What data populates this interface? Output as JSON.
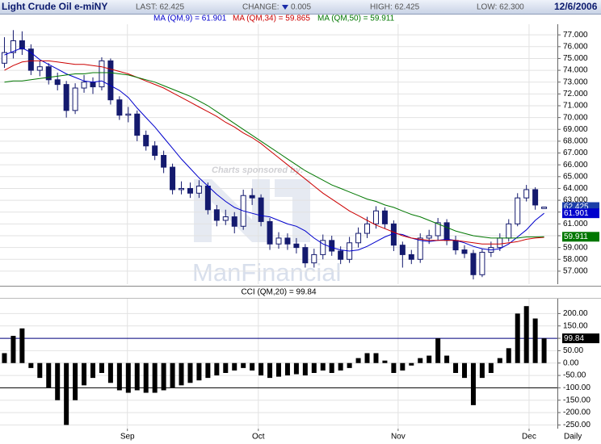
{
  "chart_data": [
    {
      "type": "candlestick",
      "title": "Light Crude Oil e-miNY",
      "stats": [
        "LAST: 62.425",
        "HIGH: 62.425",
        "LOW: 62.300"
      ],
      "change_label": "CHANGE:",
      "change_value": "0.005",
      "date": "12/6/2006",
      "watermark": [
        "Charts sponsored by:",
        "ManFinancial"
      ],
      "open": [
        74.6,
        75.5,
        76.5,
        75.8,
        74.0,
        74.3,
        73.2,
        72.8,
        70.6,
        72.5,
        73.0,
        72.6,
        74.8,
        71.5,
        70.2,
        70.3,
        68.5,
        67.6,
        66.8,
        65.8,
        63.9,
        64.0,
        63.6,
        64.2,
        62.2,
        61.3,
        61.6,
        60.8,
        63.4,
        63.2,
        61.2,
        59.3,
        59.8,
        59.3,
        59.0,
        57.7,
        58.4,
        59.6,
        58.7,
        58.0,
        59.4,
        60.2,
        61.0,
        62.1,
        61.0,
        59.2,
        58.4,
        58.0,
        59.8,
        60.0,
        61.1,
        59.6,
        58.8,
        58.5,
        56.7,
        58.6,
        59.0,
        59.8,
        61.0,
        63.2,
        63.9,
        62.3
      ],
      "high": [
        76.8,
        77.4,
        77.3,
        76.2,
        74.8,
        74.6,
        73.8,
        73.1,
        72.9,
        73.6,
        73.4,
        75.1,
        75.0,
        71.8,
        70.9,
        70.6,
        68.9,
        68.0,
        67.2,
        66.1,
        64.6,
        64.5,
        64.7,
        64.5,
        62.6,
        62.2,
        62.0,
        63.9,
        64.0,
        63.5,
        61.5,
        60.3,
        60.2,
        59.8,
        59.3,
        58.9,
        60.1,
        60.0,
        59.1,
        59.9,
        60.7,
        61.6,
        62.5,
        62.4,
        61.3,
        59.5,
        58.8,
        60.2,
        60.5,
        61.5,
        61.4,
        60.0,
        59.2,
        58.8,
        58.9,
        59.5,
        60.2,
        61.4,
        63.6,
        64.3,
        64.1,
        62.425
      ],
      "low": [
        74.2,
        75.0,
        75.3,
        73.6,
        73.5,
        72.8,
        72.3,
        70.0,
        70.3,
        72.1,
        72.0,
        72.3,
        71.1,
        69.8,
        69.6,
        68.0,
        67.2,
        66.4,
        65.3,
        63.5,
        63.5,
        63.2,
        63.2,
        61.8,
        60.8,
        60.9,
        60.2,
        60.5,
        62.6,
        60.8,
        58.8,
        58.9,
        58.8,
        58.5,
        57.3,
        57.3,
        58.0,
        58.3,
        57.6,
        57.7,
        59.0,
        59.8,
        60.6,
        60.6,
        58.7,
        57.3,
        57.6,
        57.7,
        59.3,
        59.6,
        59.2,
        58.4,
        58.1,
        56.3,
        56.5,
        58.2,
        58.7,
        59.5,
        60.8,
        62.9,
        62.2,
        62.3
      ],
      "close": [
        75.5,
        76.5,
        75.8,
        74.0,
        74.3,
        73.2,
        72.8,
        70.6,
        72.5,
        73.0,
        72.6,
        74.8,
        71.5,
        70.2,
        70.3,
        68.5,
        67.6,
        66.8,
        65.8,
        63.9,
        64.0,
        63.6,
        64.2,
        62.2,
        61.3,
        61.6,
        60.8,
        63.4,
        63.2,
        61.2,
        59.3,
        59.8,
        59.3,
        59.0,
        57.7,
        58.4,
        59.6,
        58.7,
        58.0,
        59.4,
        60.2,
        61.0,
        62.1,
        61.0,
        59.2,
        58.4,
        58.0,
        59.8,
        60.0,
        61.1,
        59.6,
        58.8,
        58.5,
        56.7,
        58.6,
        59.0,
        59.8,
        61.0,
        63.2,
        63.9,
        62.6,
        62.425
      ],
      "color": "#141a6e",
      "last_label": "62.425",
      "series": [
        {
          "name": "MA (QM,9) = 61.901",
          "color": "#0000cc",
          "last_label": "61.901",
          "values": [
            75.3,
            75.6,
            75.9,
            75.5,
            74.9,
            74.5,
            74.1,
            73.7,
            73.4,
            73.1,
            73.0,
            73.1,
            72.7,
            72.3,
            71.7,
            70.8,
            70.0,
            69.2,
            68.3,
            67.4,
            66.5,
            65.7,
            64.9,
            64.2,
            63.5,
            62.9,
            62.4,
            62.1,
            61.9,
            61.7,
            61.6,
            61.3,
            61.0,
            60.8,
            60.4,
            59.8,
            59.3,
            59.0,
            58.8,
            58.7,
            58.8,
            59.1,
            59.5,
            59.9,
            60.2,
            60.1,
            59.8,
            59.6,
            59.5,
            59.6,
            59.7,
            59.6,
            59.4,
            59.1,
            58.9,
            58.8,
            58.9,
            59.3,
            59.9,
            60.5,
            61.3,
            61.901
          ]
        },
        {
          "name": "MA (QM,34) = 59.865",
          "color": "#cc0000",
          "values": [
            74.0,
            74.4,
            74.7,
            74.8,
            74.8,
            74.8,
            74.7,
            74.6,
            74.5,
            74.5,
            74.4,
            74.3,
            74.1,
            73.9,
            73.7,
            73.4,
            73.1,
            72.8,
            72.5,
            72.1,
            71.7,
            71.3,
            70.9,
            70.5,
            70.1,
            69.6,
            69.2,
            68.7,
            68.3,
            67.8,
            67.2,
            66.6,
            66.0,
            65.4,
            64.8,
            64.2,
            63.6,
            63.1,
            62.6,
            62.1,
            61.7,
            61.3,
            60.9,
            60.6,
            60.3,
            60.0,
            59.8,
            59.7,
            59.6,
            59.6,
            59.6,
            59.6,
            59.5,
            59.4,
            59.3,
            59.3,
            59.3,
            59.4,
            59.5,
            59.7,
            59.8,
            59.865
          ]
        },
        {
          "name": "MA (QM,50) = 59.911",
          "color": "#007700",
          "last_label": "59.911",
          "values": [
            73.0,
            73.1,
            73.1,
            73.2,
            73.3,
            73.4,
            73.5,
            73.6,
            73.7,
            73.7,
            73.8,
            73.8,
            73.8,
            73.7,
            73.6,
            73.4,
            73.2,
            73.0,
            72.7,
            72.4,
            72.1,
            71.8,
            71.4,
            71.0,
            70.5,
            70.0,
            69.5,
            69.0,
            68.5,
            68.0,
            67.5,
            67.0,
            66.5,
            66.0,
            65.5,
            65.1,
            64.7,
            64.3,
            64.0,
            63.7,
            63.4,
            63.1,
            62.9,
            62.6,
            62.4,
            62.1,
            61.8,
            61.6,
            61.3,
            61.0,
            60.7,
            60.4,
            60.2,
            60.0,
            59.9,
            59.8,
            59.8,
            59.8,
            59.8,
            59.9,
            59.9,
            59.911
          ]
        }
      ],
      "xlim": [
        -0.5,
        62.5
      ],
      "ylim": [
        55.9,
        77.9
      ],
      "yticks": [
        {
          "value": 57,
          "label": "57.000"
        },
        {
          "value": 58,
          "label": "58.000"
        },
        {
          "value": 59,
          "label": "59.000"
        },
        {
          "value": 60,
          "label": "60.000"
        },
        {
          "value": 61,
          "label": "61.000"
        },
        {
          "value": 62,
          "label": "62.000"
        },
        {
          "value": 63,
          "label": "63.000"
        },
        {
          "value": 64,
          "label": "64.000"
        },
        {
          "value": 65,
          "label": "65.000"
        },
        {
          "value": 66,
          "label": "66.000"
        },
        {
          "value": 67,
          "label": "67.000"
        },
        {
          "value": 68,
          "label": "68.000"
        },
        {
          "value": 69,
          "label": "69.000"
        },
        {
          "value": 70,
          "label": "70.000"
        },
        {
          "value": 71,
          "label": "71.000"
        },
        {
          "value": 72,
          "label": "72.000"
        },
        {
          "value": 73,
          "label": "73.000"
        },
        {
          "value": 74,
          "label": "74.000"
        },
        {
          "value": 75,
          "label": "75.000"
        },
        {
          "value": 76,
          "label": "76.000"
        },
        {
          "value": 77,
          "label": "77.000"
        }
      ],
      "grid": true
    },
    {
      "type": "bar",
      "title": "CCI (QM,20) = 99.84",
      "values": [
        40,
        110,
        140,
        -20,
        -60,
        -100,
        -150,
        -250,
        -150,
        -90,
        -60,
        -40,
        -80,
        -110,
        -120,
        -110,
        -120,
        -120,
        -110,
        -100,
        -90,
        -80,
        -70,
        -60,
        -50,
        -40,
        -30,
        -20,
        -30,
        -50,
        -60,
        -55,
        -50,
        -45,
        -50,
        -40,
        -30,
        -40,
        -30,
        -20,
        20,
        40,
        40,
        10,
        -40,
        -30,
        -10,
        20,
        30,
        100,
        30,
        -40,
        -60,
        -170,
        -60,
        -40,
        20,
        60,
        200,
        230,
        180,
        99.84
      ],
      "color": "#000000",
      "last_label": "99.84",
      "reference_lines": [
        {
          "value": 100,
          "color": "#00007f"
        },
        {
          "value": -100,
          "color": "#000000"
        }
      ],
      "xlim": [
        -0.5,
        62.5
      ],
      "ylim": [
        -265,
        260
      ],
      "yticks": [
        {
          "value": 200,
          "label": "200.00"
        },
        {
          "value": 150,
          "label": "150.00"
        },
        {
          "value": 100,
          "label": "100.00"
        },
        {
          "value": 50,
          "label": "50.00"
        },
        {
          "value": 0,
          "label": "0.00"
        },
        {
          "value": -50,
          "label": "-50.00"
        },
        {
          "value": -100,
          "label": "-100.00"
        },
        {
          "value": -150,
          "label": "-150.00"
        },
        {
          "value": -200,
          "label": "-200.00"
        },
        {
          "value": -250,
          "label": "-250.00"
        }
      ],
      "xticks": [
        {
          "value": 13.9,
          "label": "Sep"
        },
        {
          "value": 28.7,
          "label": "Oct"
        },
        {
          "value": 44.5,
          "label": "Nov"
        },
        {
          "value": 59.3,
          "label": "Dec"
        }
      ],
      "x_axis_label": "Daily",
      "grid": true
    }
  ]
}
